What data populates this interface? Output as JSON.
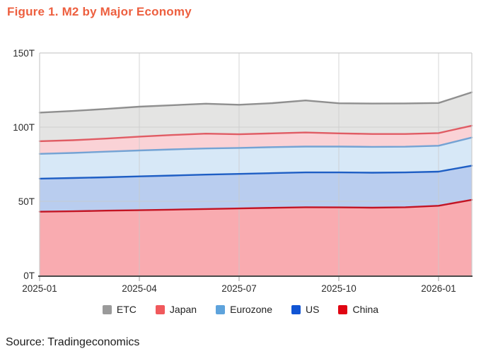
{
  "title": "Figure 1. M2 by Major Economy",
  "source": "Source: Tradingeconomics",
  "colors": {
    "title_accent": "#ed5f3f",
    "axis_text": "#2b2b2b",
    "gridline": "#c9c9c9",
    "plot_border": "#cccccc",
    "axis_line": "#4a4a4a"
  },
  "chart_data": {
    "type": "area",
    "stacked": true,
    "title": "Figure 1. M2 by Major Economy",
    "xlabel": "",
    "ylabel": "",
    "ylim": [
      0,
      150
    ],
    "y_tick_labels": [
      "0T",
      "50T",
      "100T",
      "150T"
    ],
    "y_tick_values": [
      0,
      50,
      100,
      150
    ],
    "grid": true,
    "legend_position": "bottom",
    "x": [
      "2025-01",
      "2025-02",
      "2025-03",
      "2025-04",
      "2025-05",
      "2025-06",
      "2025-07",
      "2025-08",
      "2025-09",
      "2025-10",
      "2025-11",
      "2025-12",
      "2026-01",
      "2026-02"
    ],
    "x_tick_labels": [
      "2025-01",
      "2025-04",
      "2025-07",
      "2025-10",
      "2026-01"
    ],
    "x_tick_indices": [
      0,
      3,
      6,
      9,
      12
    ],
    "series": [
      {
        "name": "China",
        "values": [
          43,
          43.3,
          43.7,
          44,
          44.4,
          44.8,
          45.2,
          45.6,
          46,
          45.9,
          45.7,
          46,
          47,
          51
        ],
        "line_color": "#c31423",
        "fill_color": "#f9abb0"
      },
      {
        "name": "US",
        "values": [
          22.3,
          22.4,
          22.5,
          22.8,
          23,
          23.2,
          23.3,
          23.4,
          23.5,
          23.6,
          23.6,
          23.5,
          23,
          23
        ],
        "line_color": "#1e5ec4",
        "fill_color": "#b9cdef"
      },
      {
        "name": "Eurozone",
        "values": [
          16.7,
          16.9,
          17.3,
          17.5,
          17.6,
          17.6,
          17.5,
          17.5,
          17.4,
          17.4,
          17.4,
          17.3,
          17.5,
          19
        ],
        "line_color": "#74a3d4",
        "fill_color": "#d7e8f7"
      },
      {
        "name": "Japan",
        "values": [
          8.5,
          8.6,
          8.8,
          9.3,
          9.7,
          10,
          9.2,
          9.3,
          9.5,
          8.9,
          8.7,
          8.6,
          8.5,
          8
        ],
        "line_color": "#e05c64",
        "fill_color": "#fad2d6"
      },
      {
        "name": "ETC",
        "values": [
          19.3,
          19.7,
          20,
          20.2,
          20.1,
          20.2,
          19.9,
          20.4,
          21.6,
          20.3,
          20.5,
          20.6,
          20.3,
          22.5
        ],
        "line_color": "#8f8f8f",
        "fill_color": "#e4e4e3"
      }
    ],
    "legend": [
      {
        "label": "ETC",
        "color": "#9a9a9a"
      },
      {
        "label": "Japan",
        "color": "#f0595c"
      },
      {
        "label": "Eurozone",
        "color": "#5ea3dc"
      },
      {
        "label": "US",
        "color": "#1155d4"
      },
      {
        "label": "China",
        "color": "#e00512"
      }
    ]
  }
}
